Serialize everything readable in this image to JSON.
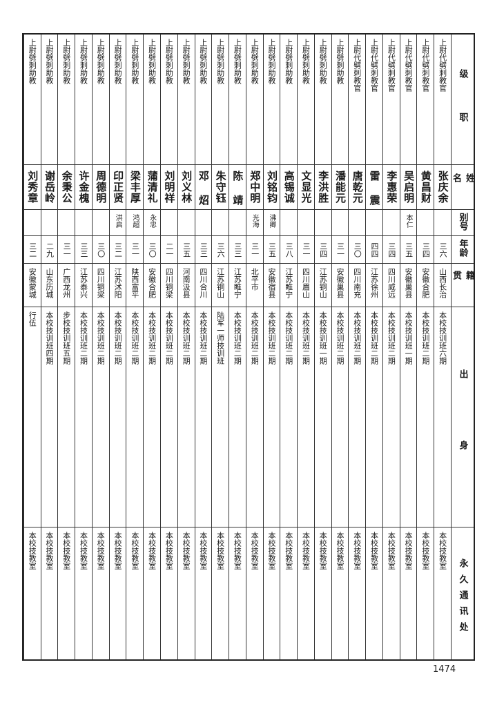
{
  "headers": [
    "级职",
    "姓名",
    "别号",
    "年龄",
    "籍贯",
    "出身",
    "永久通讯处"
  ],
  "rows": [
    {
      "rank": "上尉代劈刺教官",
      "name": "张庆余",
      "alias": "",
      "age": "三六",
      "native": "山西长治",
      "background": "本校技训班六期",
      "address": "本校技教室"
    },
    {
      "rank": "上尉代劈刺教官",
      "name": "黄昌财",
      "alias": "",
      "age": "三四",
      "native": "安徽合肥",
      "background": "本校技训班二期",
      "address": "本校技教室"
    },
    {
      "rank": "上尉代劈刺教官",
      "name": "吴启明",
      "alias": "本仁",
      "age": "三五",
      "native": "安徽巢县",
      "background": "本校技训班一期",
      "address": "本校技教室"
    },
    {
      "rank": "上尉代劈刺教官",
      "name": "李惠荣",
      "alias": "",
      "age": "三四",
      "native": "四川威远",
      "background": "本校技训班二期",
      "address": "本校技教室"
    },
    {
      "rank": "上尉代劈刺教官",
      "name": "雷 震",
      "alias": "",
      "age": "四四",
      "native": "江苏徐州",
      "background": "本校技训班二期",
      "address": "本校技教室"
    },
    {
      "rank": "上尉代劈刺教官",
      "name": "唐乾元",
      "alias": "",
      "age": "三〇",
      "native": "四川南充",
      "background": "本校技训班二期",
      "address": "本校技教室"
    },
    {
      "rank": "上尉劈刺助教",
      "name": "潘能元",
      "alias": "",
      "age": "三一",
      "native": "安徽巢县",
      "background": "本校技训班二期",
      "address": "本校技教室"
    },
    {
      "rank": "上尉劈刺助教",
      "name": "李洪胜",
      "alias": "",
      "age": "三四",
      "native": "江苏铜山",
      "background": "本校技训班一期",
      "address": "本校技教室"
    },
    {
      "rank": "上尉劈刺助教",
      "name": "文显光",
      "alias": "",
      "age": "三一",
      "native": "四川眉山",
      "background": "本校技训班二期",
      "address": "本校技教室"
    },
    {
      "rank": "上尉劈刺助教",
      "name": "高锡诚",
      "alias": "",
      "age": "三八",
      "native": "江苏睢宁",
      "background": "本校技训班二期",
      "address": "本校技教室"
    },
    {
      "rank": "上尉劈刺助教",
      "name": "刘铭钧",
      "alias": "沸卿",
      "age": "三五",
      "native": "安徽宿县",
      "background": "本校技训班二期",
      "address": "本校技教室"
    },
    {
      "rank": "上尉劈刺助教",
      "name": "郑中明",
      "alias": "光海",
      "age": "三一",
      "native": "北平市",
      "background": "本校技训班二期",
      "address": "本校技教室"
    },
    {
      "rank": "上尉劈刺助教",
      "name": "陈 靖",
      "alias": "",
      "age": "三三",
      "native": "江苏睢宁",
      "background": "本校技训班二期",
      "address": "本校技教室"
    },
    {
      "rank": "上尉劈刺助教",
      "name": "朱守钰",
      "alias": "",
      "age": "三六",
      "native": "江苏铜山",
      "background": "陆军一师技训班",
      "address": "本校技教室"
    },
    {
      "rank": "上尉劈刺助教",
      "name": "邓 炤",
      "alias": "",
      "age": "三三",
      "native": "四川合川",
      "background": "本校技训班二期",
      "address": "本校技教室"
    },
    {
      "rank": "上尉劈刺助教",
      "name": "刘义林",
      "alias": "",
      "age": "三五",
      "native": "河南汲县",
      "background": "本校技训班二期",
      "address": "本校技教室"
    },
    {
      "rank": "上尉劈刺助教",
      "name": "刘明祥",
      "alias": "",
      "age": "二一",
      "native": "四川铜梁",
      "background": "本校技训班二期",
      "address": "本校技教室"
    },
    {
      "rank": "上尉劈刺助教",
      "name": "蒲清礼",
      "alias": "永忠",
      "age": "三〇",
      "native": "安徽合肥",
      "background": "本校技训班二期",
      "address": "本校技教室"
    },
    {
      "rank": "上尉劈刺助教",
      "name": "梁丰厚",
      "alias": "鸿超",
      "age": "三一",
      "native": "陕西富平",
      "background": "本校技训班二期",
      "address": "本校技教室"
    },
    {
      "rank": "上尉劈刺助教",
      "name": "印正贤",
      "alias": "洪启",
      "age": "三二",
      "native": "江苏沭阳",
      "background": "本校技训班二期",
      "address": "本校技教室"
    },
    {
      "rank": "上尉劈刺助教",
      "name": "周德明",
      "alias": "",
      "age": "三〇",
      "native": "四川铜梁",
      "background": "本校技训班二期",
      "address": "本校技教室"
    },
    {
      "rank": "上尉劈刺助教",
      "name": "许金槐",
      "alias": "",
      "age": "三三",
      "native": "江苏泰兴",
      "background": "本校技训班二期",
      "address": "本校技教室"
    },
    {
      "rank": "上尉劈刺助教",
      "name": "余秉公",
      "alias": "",
      "age": "三一",
      "native": "广西龙州",
      "background": "步校技训班五期",
      "address": "本校技教室"
    },
    {
      "rank": "上尉劈刺助教",
      "name": "谢岳岭",
      "alias": "",
      "age": "二九",
      "native": "山东历城",
      "background": "本校技训班四期",
      "address": "本校技教室"
    },
    {
      "rank": "上尉劈刺助教",
      "name": "刘秀章",
      "alias": "",
      "age": "三二",
      "native": "安徽蒙城",
      "background": "行伍",
      "address": "本校技教室"
    }
  ],
  "page_number": "1474"
}
